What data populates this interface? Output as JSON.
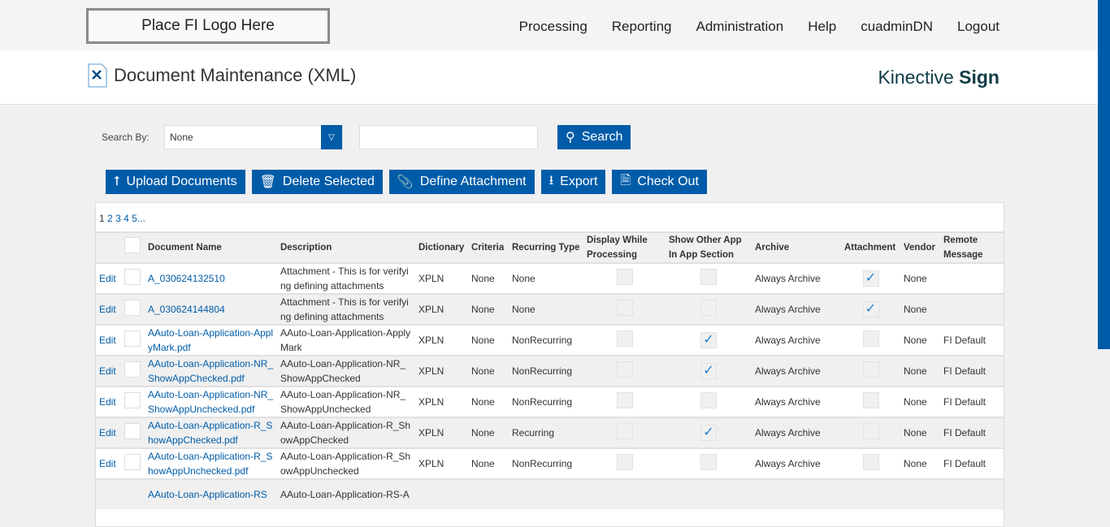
{
  "header": {
    "logo": "Place FI Logo Here",
    "nav": [
      "Processing",
      "Reporting",
      "Administration",
      "Help",
      "cuadminDN",
      "Logout"
    ]
  },
  "page": {
    "title": "Document Maintenance (XML)",
    "brand_light": "Kinective",
    "brand_bold": "Sign"
  },
  "search": {
    "label": "Search By:",
    "select_value": "None",
    "input_value": "",
    "button": "Search"
  },
  "toolbar": {
    "upload": "Upload Documents",
    "delete": "Delete Selected",
    "define": "Define Attachment",
    "export": "Export",
    "checkout": "Check Out"
  },
  "pager": [
    "1",
    "2",
    "3",
    "4",
    "5",
    "..."
  ],
  "columns": [
    "",
    "",
    "Document Name",
    "Description",
    "Dictionary",
    "Criteria",
    "Recurring Type",
    "Display While Processing",
    "Show Other App In App Section",
    "Archive",
    "Attachment",
    "Vendor",
    "Remote Message"
  ],
  "rows": [
    {
      "edit": "Edit",
      "name": "A_030624132510",
      "desc": "Attachment - This is for verifying defining attachments",
      "dict": "XPLN",
      "criteria": "None",
      "rec": "None",
      "display": false,
      "show": false,
      "archive": "Always Archive",
      "attach": true,
      "vendor": "None",
      "remote": ""
    },
    {
      "edit": "Edit",
      "name": "A_030624144804",
      "desc": "Attachment - This is for verifying defining attachments",
      "dict": "XPLN",
      "criteria": "None",
      "rec": "None",
      "display": false,
      "show": false,
      "archive": "Always Archive",
      "attach": true,
      "vendor": "None",
      "remote": ""
    },
    {
      "edit": "Edit",
      "name": "AAuto-Loan-Application-ApplyMark.pdf",
      "desc": "AAuto-Loan-Application-ApplyMark",
      "dict": "XPLN",
      "criteria": "None",
      "rec": "NonRecurring",
      "display": false,
      "show": true,
      "archive": "Always Archive",
      "attach": false,
      "vendor": "None",
      "remote": "FI Default"
    },
    {
      "edit": "Edit",
      "name": "AAuto-Loan-Application-NR_ShowAppChecked.pdf",
      "desc": "AAuto-Loan-Application-NR_ShowAppChecked",
      "dict": "XPLN",
      "criteria": "None",
      "rec": "NonRecurring",
      "display": false,
      "show": true,
      "archive": "Always Archive",
      "attach": false,
      "vendor": "None",
      "remote": "FI Default"
    },
    {
      "edit": "Edit",
      "name": "AAuto-Loan-Application-NR_ShowAppUnchecked.pdf",
      "desc": "AAuto-Loan-Application-NR_ShowAppUnchecked",
      "dict": "XPLN",
      "criteria": "None",
      "rec": "NonRecurring",
      "display": false,
      "show": false,
      "archive": "Always Archive",
      "attach": false,
      "vendor": "None",
      "remote": "FI Default"
    },
    {
      "edit": "Edit",
      "name": "AAuto-Loan-Application-R_ShowAppChecked.pdf",
      "desc": "AAuto-Loan-Application-R_ShowAppChecked",
      "dict": "XPLN",
      "criteria": "None",
      "rec": "Recurring",
      "display": false,
      "show": true,
      "archive": "Always Archive",
      "attach": false,
      "vendor": "None",
      "remote": "FI Default"
    },
    {
      "edit": "Edit",
      "name": "AAuto-Loan-Application-R_ShowAppUnchecked.pdf",
      "desc": "AAuto-Loan-Application-R_ShowAppUnchecked",
      "dict": "XPLN",
      "criteria": "None",
      "rec": "NonRecurring",
      "display": false,
      "show": false,
      "archive": "Always Archive",
      "attach": false,
      "vendor": "None",
      "remote": "FI Default"
    },
    {
      "edit": "",
      "name": "AAuto-Loan-Application-RS",
      "desc": "AAuto-Loan-Application-RS-A",
      "dict": "",
      "criteria": "",
      "rec": "",
      "display": false,
      "show": false,
      "archive": "",
      "attach": false,
      "vendor": "",
      "remote": ""
    }
  ],
  "colors": {
    "accent": "#005ca8",
    "check": "#1d7fd0"
  }
}
